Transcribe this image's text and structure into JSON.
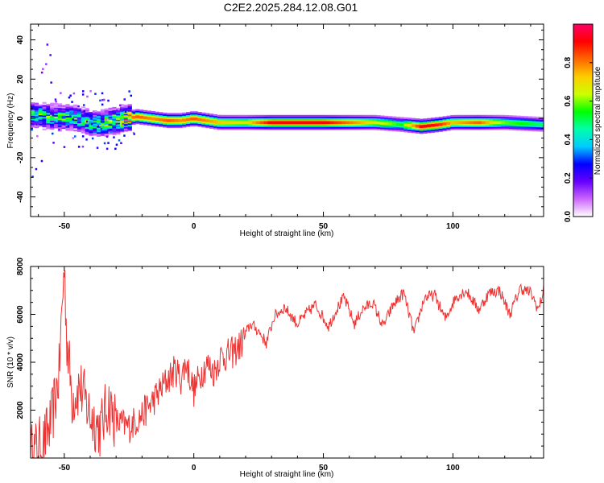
{
  "title": "C2E2.2025.284.12.08.G01",
  "chart_data": [
    {
      "type": "heatmap",
      "xlabel": "Height of straight line (km)",
      "ylabel": "Frequency (Hz)",
      "xlim": [
        -63,
        135
      ],
      "ylim": [
        -50,
        48
      ],
      "xticks": [
        "-50",
        "0",
        "50",
        "100"
      ],
      "xtick_values": [
        -50,
        0,
        50,
        100
      ],
      "yticks": [
        "-40",
        "-20",
        "0",
        "20",
        "40"
      ],
      "ytick_values": [
        -40,
        -20,
        0,
        20,
        40
      ],
      "colorbar": {
        "label": "Normalized spectral amplitude",
        "ticks": [
          "0.0",
          "0.2",
          "0.4",
          "0.6",
          "0.8"
        ],
        "tick_values": [
          0,
          0.2,
          0.4,
          0.6,
          0.8
        ],
        "range": [
          0,
          1
        ],
        "colors": [
          "#ffffff",
          "#cc66ff",
          "#6600ff",
          "#0000ff",
          "#00ccff",
          "#00ffaa",
          "#00ff00",
          "#ccff00",
          "#ffcc00",
          "#ff6600",
          "#ff0000",
          "#ff0066"
        ]
      },
      "ridge": {
        "x": [
          -63,
          -55,
          -45,
          -38,
          -30,
          -22,
          -16,
          -10,
          -5,
          0,
          5,
          10,
          20,
          30,
          50,
          70,
          80,
          88,
          95,
          100,
          110,
          120,
          135
        ],
        "frequency": [
          2,
          1,
          0,
          -3,
          -1,
          1,
          0,
          -1,
          -1,
          0,
          -1,
          -2,
          -2,
          -2,
          -2,
          -2,
          -3,
          -4,
          -3,
          -2,
          -2,
          -2,
          -3
        ],
        "amplitude": [
          0.5,
          0.5,
          0.5,
          0.55,
          0.7,
          0.85,
          0.8,
          0.85,
          0.8,
          0.85,
          0.8,
          0.75,
          0.7,
          0.95,
          0.95,
          0.7,
          0.55,
          0.95,
          0.9,
          0.75,
          0.85,
          0.6,
          0.5
        ]
      }
    },
    {
      "type": "line",
      "xlabel": "Height of straight line (km)",
      "ylabel": "SNR (10 * v/v)",
      "xlim": [
        -63,
        135
      ],
      "ylim": [
        0,
        8000
      ],
      "xticks": [
        "-50",
        "0",
        "50",
        "100"
      ],
      "xtick_values": [
        -50,
        0,
        50,
        100
      ],
      "yticks": [
        "2000",
        "4000",
        "6000",
        "8000"
      ],
      "ytick_values": [
        2000,
        4000,
        6000,
        8000
      ],
      "series": [
        {
          "name": "SNR",
          "color": "#ee3333",
          "x": [
            -63,
            -58,
            -55,
            -52,
            -51,
            -50,
            -49,
            -47,
            -44,
            -40,
            -36,
            -33,
            -30,
            -25,
            -20,
            -15,
            -10,
            -7,
            -5,
            -3,
            0,
            3,
            5,
            8,
            10,
            13,
            15,
            18,
            20,
            22,
            25,
            28,
            31,
            35,
            40,
            44,
            47,
            52,
            55,
            58,
            62,
            65,
            69,
            73,
            77,
            81,
            85,
            89,
            93,
            97,
            101,
            105,
            110,
            114,
            118,
            122,
            126,
            130,
            133,
            135
          ],
          "y": [
            200,
            600,
            1500,
            3500,
            6000,
            8000,
            5000,
            2500,
            3000,
            1800,
            1200,
            2300,
            1500,
            1300,
            1800,
            2500,
            3300,
            3700,
            3300,
            4000,
            2800,
            3600,
            3900,
            3600,
            4200,
            4300,
            4400,
            4700,
            5200,
            5600,
            5300,
            4800,
            5900,
            6300,
            5600,
            6100,
            6400,
            5500,
            6200,
            6700,
            5600,
            6200,
            6500,
            5500,
            6400,
            6900,
            5200,
            6700,
            6800,
            5800,
            6700,
            7000,
            6200,
            6900,
            7000,
            6000,
            7100,
            6900,
            6200,
            7000
          ]
        }
      ]
    }
  ]
}
